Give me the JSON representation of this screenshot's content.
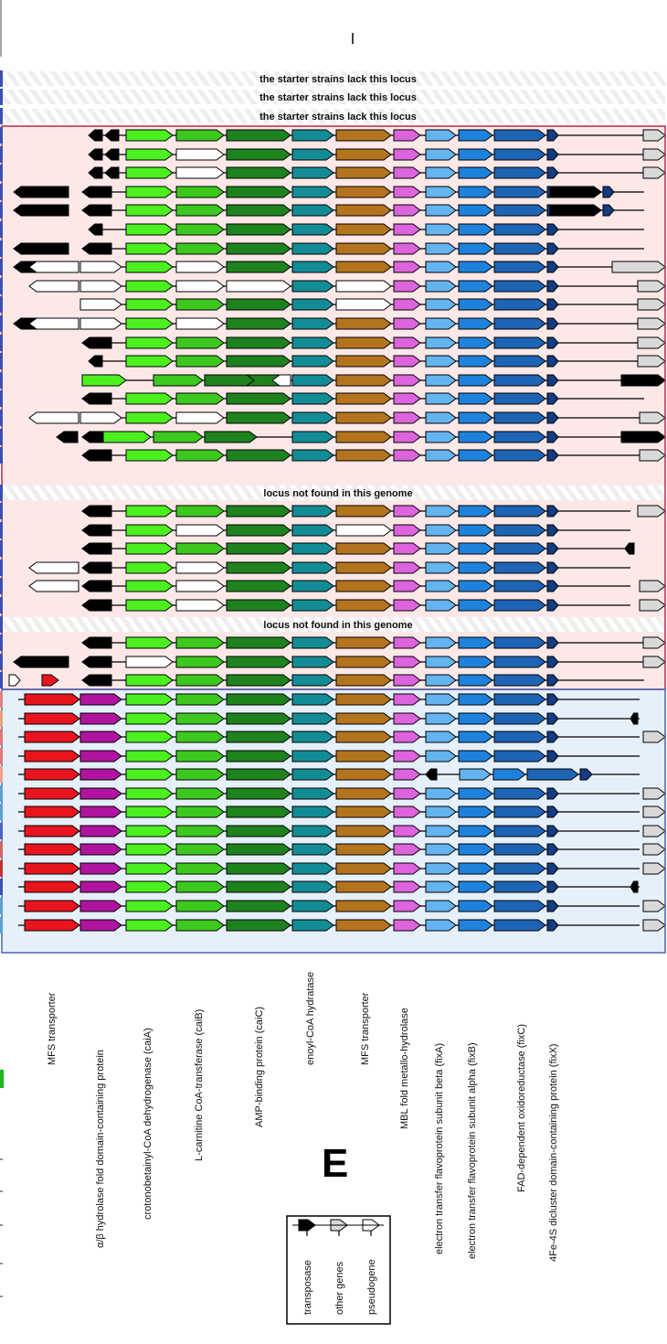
{
  "panel_letter": "E",
  "legend": {
    "items": [
      {
        "label": "transposase",
        "fill": "#000000"
      },
      {
        "label": "other genes",
        "fill": "#d9d9d9"
      },
      {
        "label": "pseudogene",
        "fill": "#ffffff"
      }
    ]
  },
  "gene_labels": [
    "MFS transporter",
    "α/β hydrolase fold domain-containing protein",
    "crotonobetainyl-CoA dehydrogenase (caiA)",
    "L-carnitine CoA-transferase (caiB)",
    "AMP-binding protein (caiC)",
    "enoyl-CoA hydratase",
    "MFS transporter",
    "MBL fold metallo-hydrolase",
    "electron transfer flavoprotein subunit beta (fixA)",
    "electron transfer flavoprotein subunit alpha (fixB)",
    "FAD-dependent oxidoreductase (fixC)",
    "4Fe-4S dicluster domain-containing protein (fixX)"
  ],
  "colors": {
    "mfs1": "#e8141e",
    "hydrolase": "#b0149e",
    "caiA": "#4cf01e",
    "caiB": "#3cc81e",
    "caiC": "#1e821e",
    "enoyl": "#148c96",
    "mfs2": "#b4741e",
    "mbl": "#dc64dc",
    "fixA": "#64b4f0",
    "fixB": "#1e82dc",
    "fixC": "#1e64b4",
    "fixX": "#143c82",
    "transposase": "#000000",
    "other": "#d9d9d9",
    "pseudo": "#ffffff",
    "pink_bg": "#fde8e8",
    "blue_bg": "#e6f0fb",
    "pink_border": "#b4284b",
    "blue_border": "#4664b4"
  },
  "missing_rows": [
    {
      "text": "the starter strains lack this locus"
    },
    {
      "text": "the starter strains lack this locus"
    },
    {
      "text": "the starter strains lack this locus"
    },
    {
      "text": "locus not found in this genome"
    },
    {
      "text": "locus not found in this genome"
    }
  ]
}
